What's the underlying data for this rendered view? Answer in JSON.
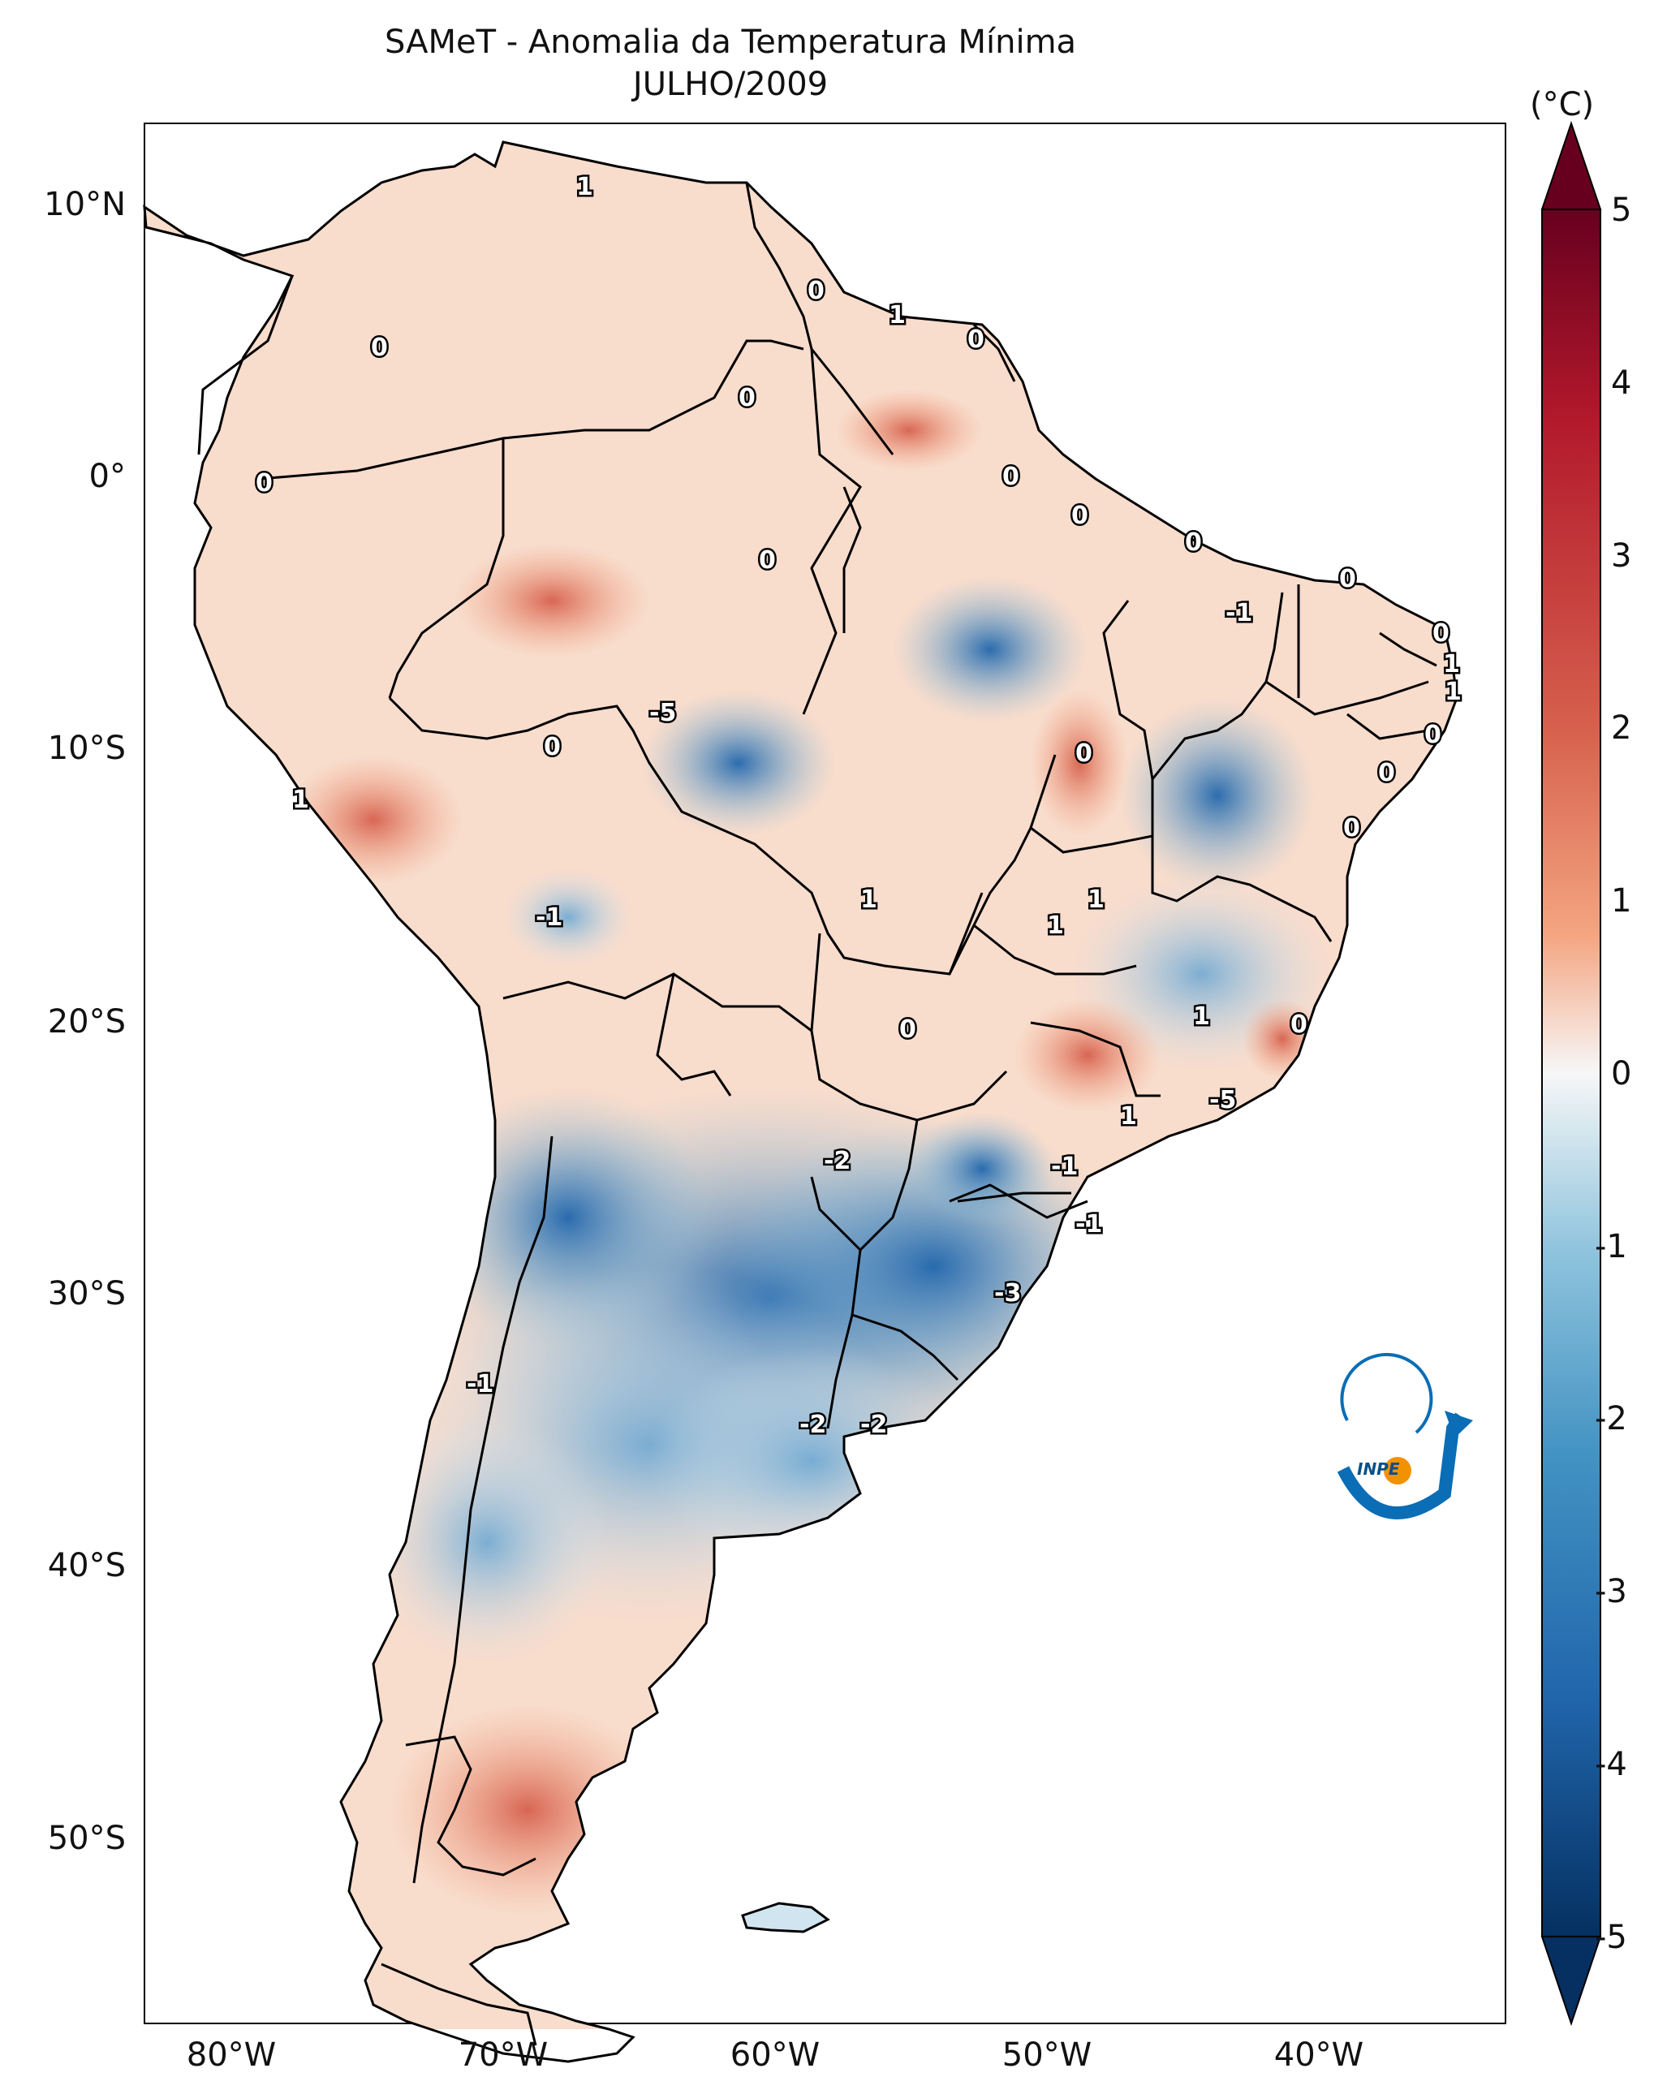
{
  "title": {
    "line1": "SAMeT - Anomalia da Temperatura Mínima",
    "line2": "JULHO/2009"
  },
  "colorbar": {
    "unit": "(°C)",
    "ticks": [
      "5",
      "4",
      "3",
      "2",
      "1",
      "0",
      "-1",
      "-2",
      "-3",
      "-4",
      "-5"
    ],
    "range": [
      -5,
      5
    ],
    "colors": {
      "max": "#67001f",
      "high": "#d6604d",
      "mid": "#f7f7f7",
      "low": "#4393c3",
      "min": "#053061"
    }
  },
  "axes": {
    "lat_labels": [
      "10°N",
      "0°",
      "10°S",
      "20°S",
      "30°S",
      "40°S",
      "50°S"
    ],
    "lon_labels": [
      "80°W",
      "70°W",
      "60°W",
      "50°W",
      "40°W"
    ]
  },
  "contour_labels": [
    "1",
    "0",
    "0",
    "1",
    "0",
    "0",
    "0",
    "0",
    "0",
    "0",
    "0",
    "0",
    "0",
    "-1",
    "0",
    "1",
    "1",
    "-5",
    "0",
    "0",
    "0",
    "0",
    "1",
    "0",
    "1",
    "1",
    "-1",
    "1",
    "1",
    "0",
    "1",
    "-5",
    "-2",
    "-1",
    "-1",
    "-3",
    "-2",
    "-2",
    "-1"
  ],
  "logo": {
    "text": "INPE",
    "blue": "#0a6db5",
    "orange": "#f39200"
  }
}
